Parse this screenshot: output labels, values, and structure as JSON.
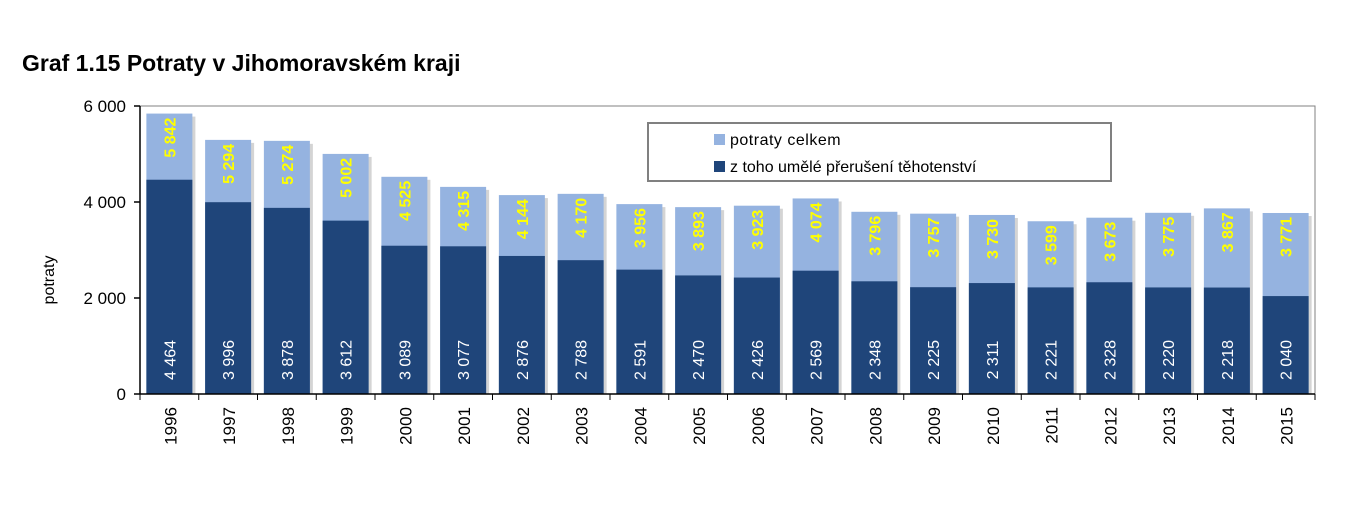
{
  "chart_data": {
    "type": "bar",
    "title": "Graf 1.15 Potraty v Jihomoravském kraji",
    "xlabel": "",
    "ylabel": "potraty",
    "ylim": [
      0,
      6000
    ],
    "yticks": [
      0,
      2000,
      4000,
      6000
    ],
    "ytick_labels": [
      "0",
      "2 000",
      "4 000",
      "6 000"
    ],
    "grid": false,
    "legend_position": "top-right",
    "categories": [
      "1996",
      "1997",
      "1998",
      "1999",
      "2000",
      "2001",
      "2002",
      "2003",
      "2004",
      "2005",
      "2006",
      "2007",
      "2008",
      "2009",
      "2010",
      "2011",
      "2012",
      "2013",
      "2014",
      "2015"
    ],
    "series": [
      {
        "name": "potraty celkem",
        "color": "#95b3e0",
        "label_color": "#ffff00",
        "values": [
          5842,
          5294,
          5274,
          5002,
          4525,
          4315,
          4144,
          4170,
          3956,
          3893,
          3923,
          4074,
          3796,
          3757,
          3730,
          3599,
          3673,
          3775,
          3867,
          3771
        ],
        "labels": [
          "5 842",
          "5 294",
          "5 274",
          "5 002",
          "4 525",
          "4 315",
          "4 144",
          "4 170",
          "3 956",
          "3 893",
          "3 923",
          "4 074",
          "3 796",
          "3 757",
          "3 730",
          "3 599",
          "3 673",
          "3 775",
          "3 867",
          "3 771"
        ]
      },
      {
        "name": "z toho umělé přerušení těhotenství",
        "color": "#1f457a",
        "label_color": "#ffffff",
        "values": [
          4464,
          3996,
          3878,
          3612,
          3089,
          3077,
          2876,
          2788,
          2591,
          2470,
          2426,
          2569,
          2348,
          2225,
          2311,
          2221,
          2328,
          2220,
          2218,
          2040
        ],
        "labels": [
          "4 464",
          "3 996",
          "3 878",
          "3 612",
          "3 089",
          "3 077",
          "2 876",
          "2 788",
          "2 591",
          "2 470",
          "2 426",
          "2 569",
          "2 348",
          "2 225",
          "2 311",
          "2 221",
          "2 328",
          "2 220",
          "2 218",
          "2 040"
        ]
      }
    ]
  }
}
